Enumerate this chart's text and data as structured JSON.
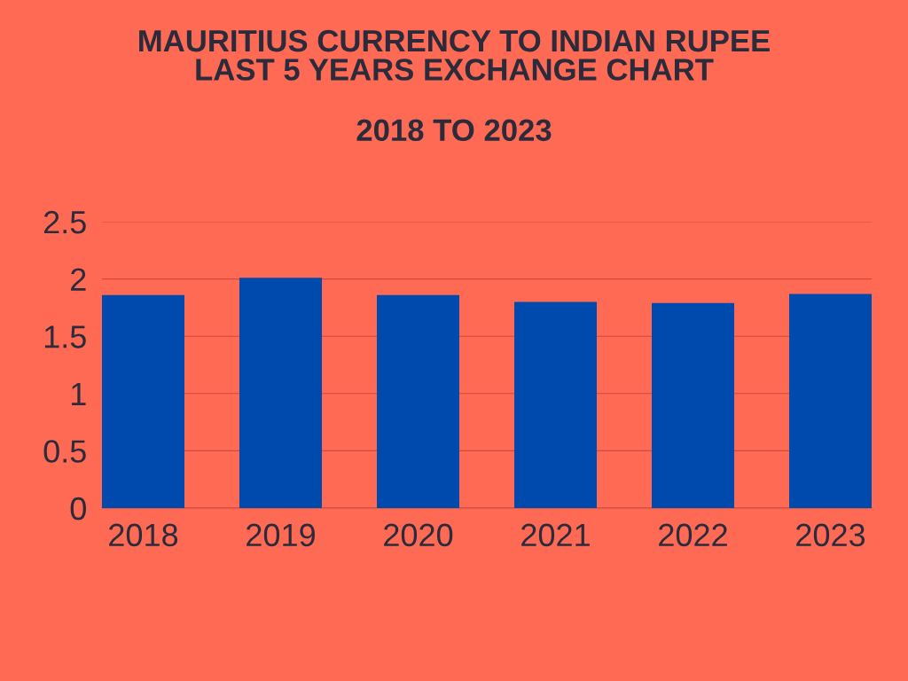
{
  "chart_data": {
    "type": "bar",
    "title": "MAURITIUS CURRENCY TO INDIAN RUPEE\nLAST 5 YEARS EXCHANGE CHART",
    "subtitle": "2018 TO 2023",
    "categories": [
      "2018",
      "2019",
      "2020",
      "2021",
      "2022",
      "2023"
    ],
    "values": [
      1.86,
      2.01,
      1.86,
      1.8,
      1.79,
      1.87
    ],
    "color": "#004aad",
    "ylim": [
      0,
      2.5
    ],
    "yticks": [
      0,
      0.5,
      1,
      1.5,
      2,
      2.5
    ],
    "grid": "y"
  }
}
